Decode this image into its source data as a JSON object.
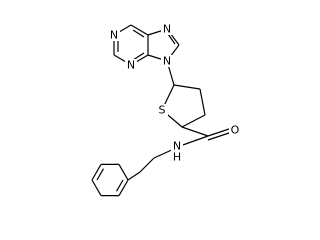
{
  "atoms": [
    {
      "label": "N"
    },
    {
      "label": "N"
    },
    {
      "label": "N"
    },
    {
      "label": "N"
    },
    {
      "label": "S"
    },
    {
      "label": "O"
    },
    {
      "label": "N"
    },
    {
      "label": "H"
    }
  ]
}
